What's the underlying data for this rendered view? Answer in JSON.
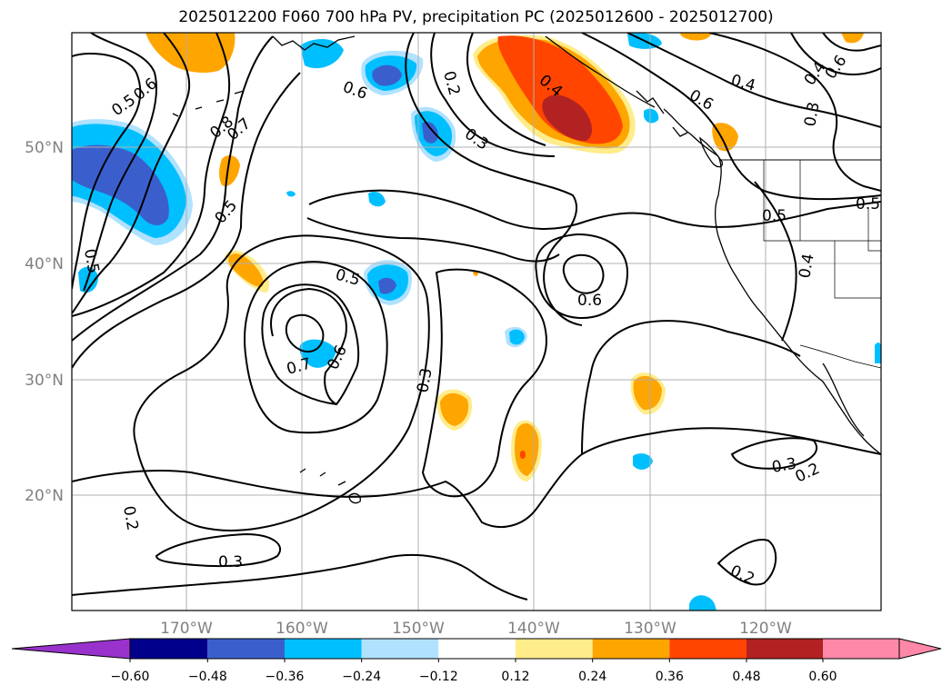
{
  "title": "2025012200 F060 700 hPa PV, precipitation PC (2025012600 - 2025012700)",
  "map": {
    "lat_labels": [
      "50°N",
      "40°N",
      "30°N",
      "20°N"
    ],
    "lon_labels": [
      "170°W",
      "160°W",
      "150°W",
      "140°W",
      "130°W",
      "120°W"
    ],
    "contour_labels": [
      "0.5",
      "0.6",
      "0.8",
      "0.7",
      "0.5",
      "0.5",
      "0.6",
      "0.2",
      "0.3",
      "0.4",
      "0.4",
      "0.6",
      "0.4",
      "0.6",
      "0.3",
      "0.5",
      "0.5",
      "0.4",
      "0.6",
      "0.5",
      "0.7",
      "0.6",
      "0.3",
      "0.3",
      "0.2",
      "0.2",
      "0.3",
      "0.2",
      "0.5",
      "0.6"
    ]
  },
  "colorbar": {
    "ticks": [
      "−0.60",
      "−0.48",
      "−0.36",
      "−0.24",
      "−0.12",
      "0.12",
      "0.24",
      "0.36",
      "0.48",
      "0.60"
    ],
    "colors": [
      "#9932cc",
      "#00008b",
      "#3a5fcd",
      "#00bfff",
      "#b0e2ff",
      "#ffffff",
      "#ffec8b",
      "#ffa500",
      "#ff4500",
      "#b22222",
      "#ff88a8"
    ]
  },
  "colors": {
    "neg_light": "#b0e2ff",
    "neg_mid": "#00bfff",
    "neg_dark": "#3a5fcd",
    "pos_light": "#ffec8b",
    "pos_mid": "#ffa500",
    "pos_dark": "#ff4500",
    "pos_max": "#b22222"
  }
}
